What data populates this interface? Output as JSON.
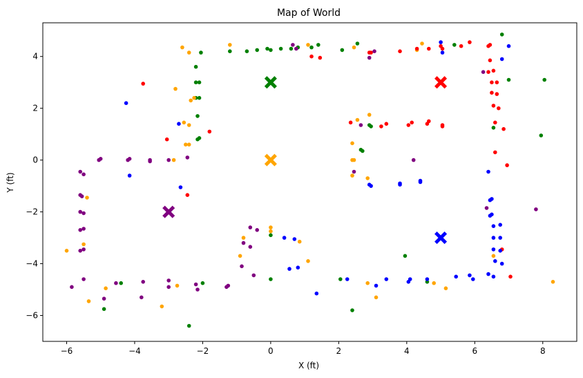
{
  "chart_data": {
    "type": "scatter",
    "title": "Map of World",
    "xlabel": "X (ft)",
    "ylabel": "Y (ft)",
    "xlim": [
      -6.7,
      9.0
    ],
    "ylim": [
      -7.0,
      5.3
    ],
    "xticks": [
      -6,
      -4,
      -2,
      0,
      2,
      4,
      6,
      8
    ],
    "yticks": [
      -6,
      -4,
      -2,
      0,
      2,
      4
    ],
    "xtick_labels": [
      "−6",
      "−4",
      "−2",
      "0",
      "2",
      "4",
      "6",
      "8"
    ],
    "ytick_labels": [
      "−6",
      "−4",
      "−2",
      "0",
      "2",
      "4"
    ],
    "grid": false,
    "legend": "none",
    "colors": {
      "green": "#008000",
      "orange": "#ffa500",
      "red": "#ff0000",
      "blue": "#0000ff",
      "purple": "#800080"
    },
    "landmarks": [
      {
        "color": "green",
        "x": 0,
        "y": 3
      },
      {
        "color": "red",
        "x": 5,
        "y": 3
      },
      {
        "color": "orange",
        "x": 0,
        "y": 0
      },
      {
        "color": "purple",
        "x": -3,
        "y": -2
      },
      {
        "color": "blue",
        "x": 5,
        "y": -3
      }
    ],
    "series": [
      {
        "color": "green",
        "points": [
          [
            -1.2,
            4.2
          ],
          [
            -0.7,
            4.2
          ],
          [
            -0.4,
            4.25
          ],
          [
            -0.1,
            4.3
          ],
          [
            0.0,
            4.25
          ],
          [
            0.3,
            4.3
          ],
          [
            0.6,
            4.3
          ],
          [
            0.8,
            4.35
          ],
          [
            1.2,
            4.35
          ],
          [
            1.4,
            4.45
          ],
          [
            2.1,
            4.25
          ],
          [
            2.55,
            4.5
          ],
          [
            5.4,
            4.45
          ],
          [
            6.8,
            4.85
          ],
          [
            -2.05,
            4.15
          ],
          [
            -2.2,
            3.6
          ],
          [
            -2.2,
            3.0
          ],
          [
            -2.1,
            3.0
          ],
          [
            -2.2,
            2.4
          ],
          [
            -2.1,
            2.4
          ],
          [
            -2.15,
            1.7
          ],
          [
            -2.15,
            0.8
          ],
          [
            -2.1,
            0.85
          ],
          [
            0.0,
            3.0
          ],
          [
            2.9,
            1.35
          ],
          [
            2.95,
            1.3
          ],
          [
            2.65,
            0.4
          ],
          [
            2.7,
            0.35
          ],
          [
            7.0,
            3.1
          ],
          [
            8.05,
            3.1
          ],
          [
            7.95,
            0.95
          ],
          [
            6.55,
            1.25
          ],
          [
            0.0,
            -2.9
          ],
          [
            0.0,
            -4.6
          ],
          [
            3.95,
            -3.7
          ],
          [
            2.05,
            -4.6
          ],
          [
            2.4,
            -5.8
          ],
          [
            4.6,
            -4.7
          ],
          [
            -2.0,
            -4.75
          ],
          [
            -4.4,
            -4.75
          ],
          [
            -4.9,
            -5.75
          ],
          [
            -2.4,
            -6.4
          ]
        ]
      },
      {
        "color": "orange",
        "points": [
          [
            -1.2,
            4.45
          ],
          [
            1.1,
            4.45
          ],
          [
            2.45,
            4.35
          ],
          [
            4.3,
            4.25
          ],
          [
            4.45,
            4.5
          ],
          [
            -2.6,
            4.35
          ],
          [
            -2.4,
            4.15
          ],
          [
            -2.8,
            2.75
          ],
          [
            -2.35,
            2.3
          ],
          [
            -2.25,
            2.4
          ],
          [
            -2.55,
            1.45
          ],
          [
            -2.4,
            1.35
          ],
          [
            -2.5,
            0.6
          ],
          [
            -2.4,
            0.6
          ],
          [
            -2.85,
            0.0
          ],
          [
            2.4,
            0.65
          ],
          [
            2.4,
            0.0
          ],
          [
            2.45,
            0.0
          ],
          [
            2.55,
            1.55
          ],
          [
            2.9,
            1.75
          ],
          [
            2.4,
            -0.6
          ],
          [
            2.85,
            -0.7
          ],
          [
            -5.4,
            -1.45
          ],
          [
            -5.5,
            -3.25
          ],
          [
            -6.0,
            -3.5
          ],
          [
            -0.8,
            -3.0
          ],
          [
            -0.9,
            -3.7
          ],
          [
            0.0,
            -2.6
          ],
          [
            0.0,
            -2.75
          ],
          [
            0.85,
            -3.15
          ],
          [
            1.1,
            -3.9
          ],
          [
            2.85,
            -4.75
          ],
          [
            3.1,
            -5.3
          ],
          [
            4.8,
            -4.75
          ],
          [
            5.15,
            -4.95
          ],
          [
            6.55,
            -3.7
          ],
          [
            8.3,
            -4.7
          ],
          [
            -2.75,
            -4.85
          ],
          [
            -3.2,
            -5.65
          ],
          [
            -4.85,
            -4.95
          ],
          [
            -5.35,
            -5.45
          ],
          [
            0.0,
            0.0
          ]
        ]
      },
      {
        "color": "red",
        "points": [
          [
            1.2,
            4.0
          ],
          [
            1.45,
            3.95
          ],
          [
            2.9,
            4.15
          ],
          [
            2.95,
            4.15
          ],
          [
            3.8,
            4.2
          ],
          [
            4.3,
            4.3
          ],
          [
            4.65,
            4.3
          ],
          [
            5.0,
            4.4
          ],
          [
            5.05,
            4.3
          ],
          [
            5.6,
            4.4
          ],
          [
            5.85,
            4.55
          ],
          [
            6.4,
            4.4
          ],
          [
            6.45,
            4.45
          ],
          [
            -3.75,
            2.95
          ],
          [
            6.45,
            3.85
          ],
          [
            6.4,
            3.4
          ],
          [
            6.55,
            3.45
          ],
          [
            6.5,
            3.0
          ],
          [
            6.65,
            3.0
          ],
          [
            6.5,
            2.6
          ],
          [
            6.65,
            2.55
          ],
          [
            6.55,
            2.1
          ],
          [
            6.7,
            2.0
          ],
          [
            6.6,
            1.45
          ],
          [
            6.85,
            1.2
          ],
          [
            6.6,
            0.3
          ],
          [
            6.95,
            -0.2
          ],
          [
            2.35,
            1.45
          ],
          [
            3.25,
            1.3
          ],
          [
            3.4,
            1.4
          ],
          [
            4.05,
            1.35
          ],
          [
            4.15,
            1.45
          ],
          [
            4.6,
            1.4
          ],
          [
            4.65,
            1.5
          ],
          [
            5.05,
            1.35
          ],
          [
            5.05,
            1.3
          ],
          [
            -1.8,
            1.1
          ],
          [
            -3.05,
            0.8
          ],
          [
            -2.45,
            -1.35
          ],
          [
            6.8,
            -3.45
          ],
          [
            7.05,
            -4.5
          ],
          [
            5.0,
            3.0
          ]
        ]
      },
      {
        "color": "blue",
        "points": [
          [
            5.0,
            4.55
          ],
          [
            5.05,
            4.15
          ],
          [
            6.8,
            3.9
          ],
          [
            7.0,
            4.4
          ],
          [
            -4.25,
            2.2
          ],
          [
            -2.7,
            1.4
          ],
          [
            -4.15,
            -0.6
          ],
          [
            -2.65,
            -1.05
          ],
          [
            6.4,
            -0.45
          ],
          [
            6.45,
            -1.55
          ],
          [
            6.5,
            -1.5
          ],
          [
            6.45,
            -2.15
          ],
          [
            6.5,
            -2.1
          ],
          [
            6.55,
            -2.55
          ],
          [
            6.75,
            -2.5
          ],
          [
            6.55,
            -3.0
          ],
          [
            6.75,
            -3.0
          ],
          [
            6.55,
            -3.45
          ],
          [
            6.75,
            -3.5
          ],
          [
            6.6,
            -3.9
          ],
          [
            6.8,
            -4.0
          ],
          [
            6.4,
            -4.4
          ],
          [
            6.55,
            -4.5
          ],
          [
            2.9,
            -0.95
          ],
          [
            2.95,
            -1.0
          ],
          [
            3.8,
            -0.9
          ],
          [
            3.8,
            -0.95
          ],
          [
            4.4,
            -0.8
          ],
          [
            4.4,
            -0.85
          ],
          [
            0.4,
            -3.0
          ],
          [
            0.7,
            -3.05
          ],
          [
            0.55,
            -4.2
          ],
          [
            0.8,
            -4.15
          ],
          [
            1.35,
            -5.15
          ],
          [
            2.25,
            -4.6
          ],
          [
            3.1,
            -4.85
          ],
          [
            3.4,
            -4.6
          ],
          [
            4.05,
            -4.7
          ],
          [
            4.1,
            -4.6
          ],
          [
            4.6,
            -4.6
          ],
          [
            5.45,
            -4.5
          ],
          [
            5.85,
            -4.45
          ],
          [
            5.95,
            -4.6
          ],
          [
            5.0,
            -3.0
          ]
        ]
      },
      {
        "color": "purple",
        "points": [
          [
            0.65,
            4.45
          ],
          [
            0.75,
            4.3
          ],
          [
            2.9,
            3.95
          ],
          [
            3.05,
            4.2
          ],
          [
            6.25,
            3.4
          ],
          [
            -5.05,
            0.0
          ],
          [
            -5.0,
            0.05
          ],
          [
            -4.2,
            0.0
          ],
          [
            -4.15,
            0.05
          ],
          [
            -3.55,
            0.0
          ],
          [
            -3.55,
            -0.05
          ],
          [
            -3.0,
            0.0
          ],
          [
            -2.45,
            0.1
          ],
          [
            -5.6,
            -0.45
          ],
          [
            -5.5,
            -0.55
          ],
          [
            -5.6,
            -1.35
          ],
          [
            -5.55,
            -1.4
          ],
          [
            -5.6,
            -2.0
          ],
          [
            -5.5,
            -2.05
          ],
          [
            -5.6,
            -2.7
          ],
          [
            -5.5,
            -2.65
          ],
          [
            -5.6,
            -3.5
          ],
          [
            -5.5,
            -3.45
          ],
          [
            -5.5,
            -4.6
          ],
          [
            -5.85,
            -4.9
          ],
          [
            -4.55,
            -4.75
          ],
          [
            -3.75,
            -4.7
          ],
          [
            -3.0,
            -4.65
          ],
          [
            -3.0,
            -4.9
          ],
          [
            -2.2,
            -4.8
          ],
          [
            -2.15,
            -5.0
          ],
          [
            -1.3,
            -4.9
          ],
          [
            -1.25,
            -4.85
          ],
          [
            -3.8,
            -5.3
          ],
          [
            -4.9,
            -5.35
          ],
          [
            -0.6,
            -2.6
          ],
          [
            -0.4,
            -2.7
          ],
          [
            -0.8,
            -3.2
          ],
          [
            -0.6,
            -3.35
          ],
          [
            -0.85,
            -4.1
          ],
          [
            -0.5,
            -4.45
          ],
          [
            2.45,
            -0.45
          ],
          [
            2.65,
            1.35
          ],
          [
            4.2,
            0.0
          ],
          [
            6.35,
            -1.85
          ],
          [
            7.8,
            -1.9
          ],
          [
            -3.0,
            -2.0
          ]
        ]
      }
    ]
  }
}
